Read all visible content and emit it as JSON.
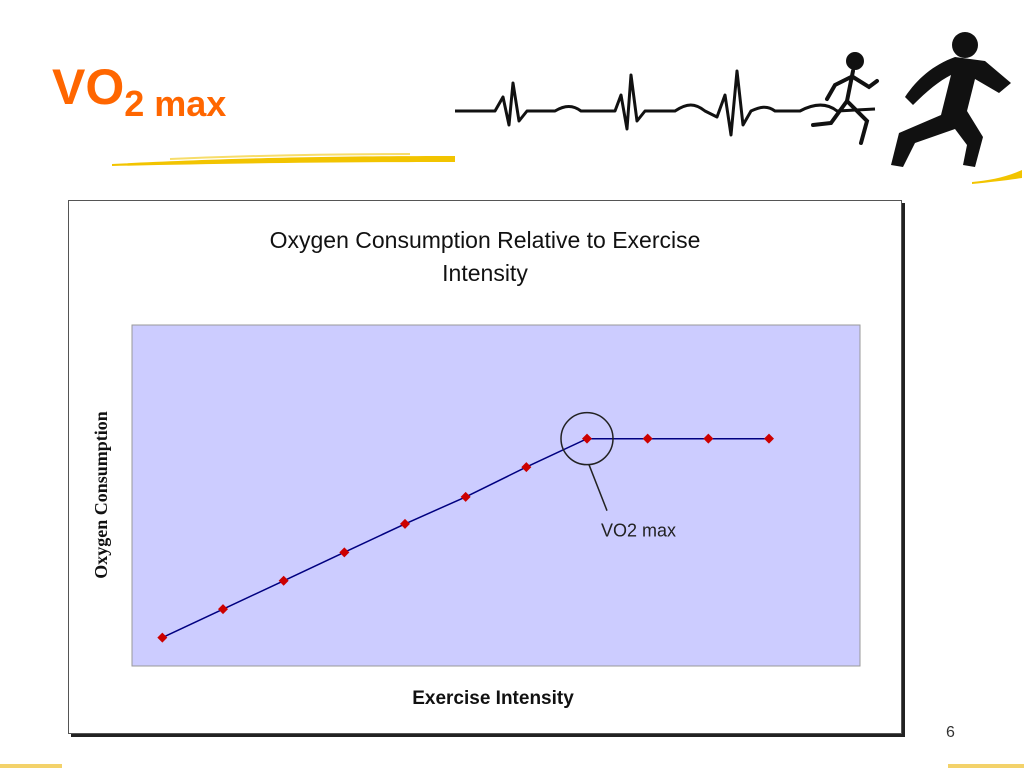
{
  "slide": {
    "title_main": "VO",
    "title_sub": "2 max",
    "page_number": "6",
    "colors": {
      "title": "#ff6600",
      "accent_stroke": "#f2c400"
    },
    "header_art": {
      "icons": [
        "ecg-trace-icon",
        "runner-small-icon",
        "runner-large-icon"
      ]
    }
  },
  "chart_data": {
    "type": "line",
    "title": "Oxygen Consumption Relative to Exercise Intensity",
    "title_lines": [
      "Oxygen Consumption Relative to Exercise",
      "Intensity"
    ],
    "xlabel": "Exercise Intensity",
    "ylabel": "Oxygen Consumption",
    "x": [
      1,
      2,
      3,
      4,
      5,
      6,
      7,
      8,
      9,
      10,
      11
    ],
    "series": [
      {
        "values": [
          1.0,
          2.0,
          3.0,
          4.0,
          5.0,
          5.95,
          7.0,
          8.0,
          8.0,
          8.0,
          8.0
        ]
      }
    ],
    "xlim": [
      0.5,
      12.5
    ],
    "ylim": [
      0,
      12
    ],
    "grid": false,
    "legend": false,
    "plot_background": "#ccccff",
    "line_color": "#000080",
    "marker_color": "#cc0000",
    "annotation": {
      "text": "VO2 max",
      "x": 8,
      "y": 8
    }
  }
}
